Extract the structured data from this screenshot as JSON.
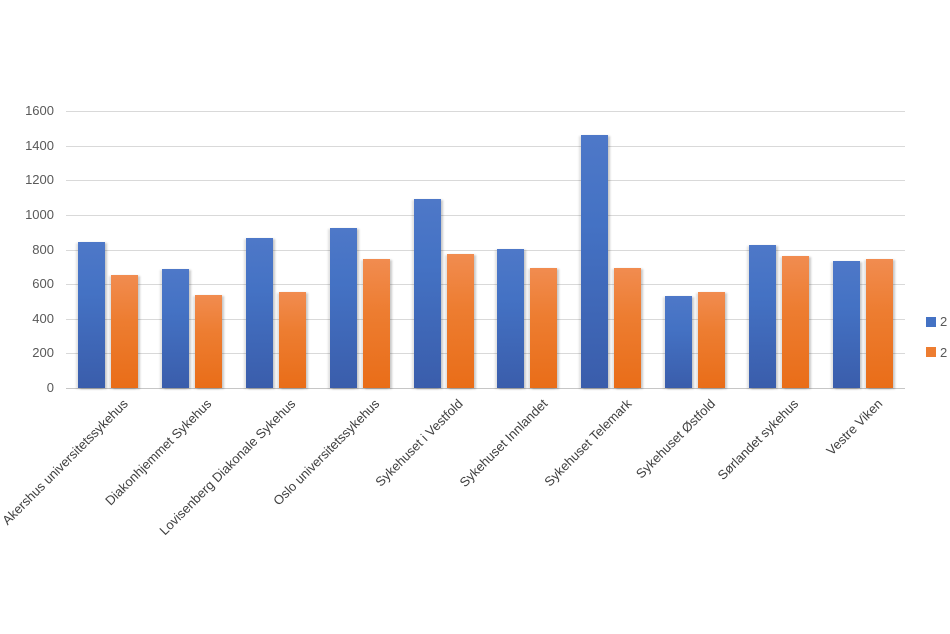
{
  "chart_data": {
    "type": "bar",
    "title": "",
    "categories": [
      "Akershus universitetssykehus",
      "Diakonhjemmet Sykehus",
      "Lovisenberg Diakonale Sykehus",
      "Oslo universitetssykehus",
      "Sykehuset i Vestfold",
      "Sykehuset Innlandet",
      "Sykehuset Telemark",
      "Sykehuset Østfold",
      "Sørlandet sykehus",
      "Vestre Viken"
    ],
    "series": [
      {
        "name": "2",
        "color": "#4472C4",
        "values": [
          845,
          690,
          865,
          925,
          1090,
          805,
          1460,
          530,
          825,
          735
        ]
      },
      {
        "name": "2",
        "color": "#ED7D31",
        "values": [
          655,
          540,
          555,
          745,
          775,
          695,
          695,
          555,
          760,
          745
        ]
      }
    ],
    "xlabel": "",
    "ylabel": "",
    "ylim": [
      0,
      1600
    ],
    "ytick_step": 200,
    "y_tick_labels": [
      "0",
      "200",
      "400",
      "600",
      "800",
      "1000",
      "1200",
      "1400",
      "1600"
    ],
    "grid": "horizontal",
    "legend_position": "right"
  },
  "legend": {
    "items": [
      {
        "label": "2",
        "color": "#4472C4"
      },
      {
        "label": "2",
        "color": "#ED7D31"
      }
    ]
  },
  "colors": {
    "series1": "#4472C4",
    "series2": "#ED7D31",
    "gridline": "#D9D9D9",
    "axis_line": "#C6C6C6",
    "tick_text": "#595959",
    "category_text": "#404040",
    "background": "#FFFFFF"
  }
}
